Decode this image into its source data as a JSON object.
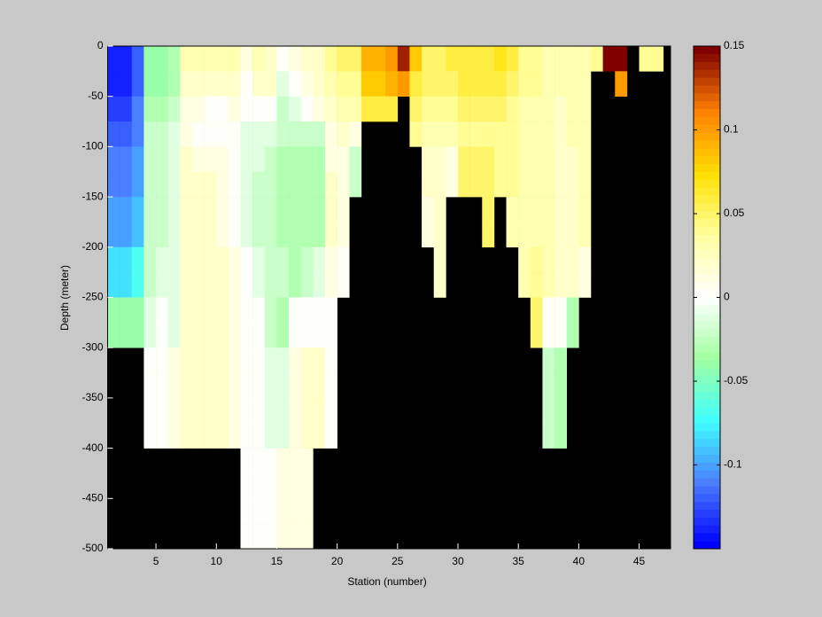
{
  "chart_data": {
    "type": "heatmap",
    "xlabel": "Station (number)",
    "ylabel": "Depth (meter)",
    "x": [
      1,
      2,
      3,
      4,
      5,
      6,
      7,
      8,
      9,
      10,
      11,
      12,
      13,
      14,
      15,
      16,
      17,
      18,
      19,
      20,
      21,
      22,
      23,
      24,
      25,
      26,
      27,
      28,
      29,
      30,
      31,
      32,
      33,
      34,
      35,
      36,
      37,
      38,
      39,
      40,
      41,
      42,
      43,
      44,
      45,
      46
    ],
    "y": [
      0,
      -25,
      -50,
      -75,
      -100,
      -125,
      -150,
      -175,
      -200,
      -225,
      -250,
      -275,
      -300,
      -325,
      -350,
      -375,
      -400,
      -425,
      -450,
      -475
    ],
    "values": [
      [
        -0.14,
        -0.14,
        -0.13,
        -0.12,
        -0.11,
        -0.11,
        -0.1,
        -0.1,
        -0.08,
        -0.08,
        -0.04,
        -0.04,
        null,
        null,
        null,
        null,
        null,
        null,
        null,
        null
      ],
      [
        -0.14,
        -0.14,
        -0.13,
        -0.12,
        -0.11,
        -0.11,
        -0.1,
        -0.1,
        -0.08,
        -0.08,
        -0.04,
        -0.04,
        null,
        null,
        null,
        null,
        null,
        null,
        null,
        null
      ],
      [
        -0.12,
        -0.12,
        -0.11,
        -0.11,
        -0.1,
        -0.1,
        -0.09,
        -0.09,
        -0.07,
        -0.07,
        -0.04,
        -0.04,
        null,
        null,
        null,
        null,
        null,
        null,
        null,
        null
      ],
      [
        -0.04,
        -0.04,
        -0.03,
        -0.02,
        -0.02,
        -0.02,
        -0.02,
        -0.02,
        -0.02,
        -0.02,
        -0.01,
        -0.01,
        0,
        0,
        0,
        0,
        null,
        null,
        null,
        null
      ],
      [
        -0.04,
        -0.04,
        -0.03,
        -0.02,
        -0.02,
        -0.02,
        -0.02,
        -0.02,
        -0.01,
        -0.01,
        0,
        0,
        0,
        0,
        0,
        0,
        null,
        null,
        null,
        null
      ],
      [
        -0.03,
        -0.03,
        -0.02,
        -0.01,
        -0.01,
        -0.01,
        -0.01,
        -0.01,
        -0.01,
        -0.01,
        -0.01,
        -0.01,
        0.01,
        0.01,
        0.01,
        0.01,
        null,
        null,
        null,
        null
      ],
      [
        0.03,
        0.02,
        0.01,
        0.01,
        0.02,
        0.02,
        0.02,
        0.02,
        0.02,
        0.02,
        0.02,
        0.02,
        0.02,
        0.02,
        0.02,
        0.02,
        null,
        null,
        null,
        null
      ],
      [
        0.03,
        0.02,
        0.01,
        0,
        0.01,
        0.02,
        0.02,
        0.02,
        0.02,
        0.02,
        0.02,
        0.02,
        0.02,
        0.02,
        0.02,
        0.02,
        null,
        null,
        null,
        null
      ],
      [
        0.03,
        0.02,
        0,
        0,
        0.01,
        0.02,
        0.02,
        0.02,
        0.02,
        0.02,
        0.02,
        0.02,
        0.02,
        0.02,
        0.02,
        0.02,
        null,
        null,
        null,
        null
      ],
      [
        0.03,
        0.02,
        0,
        0,
        0.01,
        0.01,
        0.01,
        0.01,
        0.02,
        0.02,
        0.02,
        0.02,
        0.02,
        0.02,
        0.02,
        0.02,
        null,
        null,
        null,
        null
      ],
      [
        0.03,
        0.02,
        0.01,
        0,
        0,
        0,
        0,
        0,
        0.01,
        0.01,
        0.01,
        0.01,
        0.01,
        0.01,
        0.01,
        0.01,
        null,
        null,
        null,
        null
      ],
      [
        0.01,
        0,
        0,
        -0.01,
        -0.01,
        -0.01,
        -0.01,
        -0.01,
        0,
        0,
        0,
        0,
        0,
        0,
        0,
        0,
        0,
        0,
        0,
        0
      ],
      [
        0.03,
        0.02,
        0,
        -0.01,
        -0.01,
        -0.02,
        -0.02,
        -0.02,
        -0.01,
        -0.01,
        0,
        0,
        0,
        0,
        0,
        0,
        0,
        0,
        0,
        0
      ],
      [
        0.02,
        0.02,
        0,
        -0.01,
        -0.02,
        -0.02,
        -0.02,
        -0.02,
        -0.02,
        -0.02,
        -0.02,
        -0.02,
        -0.01,
        -0.01,
        -0.01,
        -0.01,
        0,
        0,
        0,
        0
      ],
      [
        0,
        -0.01,
        -0.02,
        -0.02,
        -0.03,
        -0.03,
        -0.03,
        -0.03,
        -0.02,
        -0.02,
        -0.03,
        -0.03,
        -0.01,
        -0.01,
        -0.01,
        -0.01,
        0.01,
        0.01,
        0.01,
        0.01
      ],
      [
        0.01,
        0,
        -0.01,
        -0.02,
        -0.03,
        -0.03,
        -0.03,
        -0.03,
        -0.03,
        -0.03,
        0,
        0,
        0.01,
        0.01,
        0.01,
        0.01,
        0.01,
        0.01,
        0.01,
        0.01
      ],
      [
        0.02,
        0.01,
        0,
        -0.02,
        -0.03,
        -0.03,
        -0.03,
        -0.03,
        -0.02,
        -0.02,
        0,
        0,
        0.02,
        0.02,
        0.02,
        0.02,
        0.01,
        0.01,
        0.01,
        0.01
      ],
      [
        0.02,
        0.02,
        0.01,
        -0.02,
        -0.03,
        -0.03,
        -0.03,
        -0.03,
        -0.01,
        -0.01,
        0,
        0,
        0.02,
        0.02,
        0.02,
        0.02,
        null,
        null,
        null,
        null
      ],
      [
        0.04,
        0.03,
        0.02,
        0.01,
        0.01,
        0.02,
        0.02,
        0.02,
        0.01,
        0.01,
        0,
        0,
        0,
        0,
        0,
        0,
        null,
        null,
        null,
        null
      ],
      [
        0.05,
        0.04,
        0.03,
        0.02,
        0.01,
        0.01,
        0.01,
        0.01,
        0,
        0,
        null,
        null,
        null,
        null,
        null,
        null,
        null,
        null,
        null,
        null
      ],
      [
        0.05,
        0.04,
        0.03,
        0.01,
        -0.02,
        -0.02,
        null,
        null,
        null,
        null,
        null,
        null,
        null,
        null,
        null,
        null,
        null,
        null,
        null,
        null
      ],
      [
        0.09,
        0.08,
        0.06,
        null,
        null,
        null,
        null,
        null,
        null,
        null,
        null,
        null,
        null,
        null,
        null,
        null,
        null,
        null,
        null,
        null
      ],
      [
        0.09,
        0.08,
        0.06,
        null,
        null,
        null,
        null,
        null,
        null,
        null,
        null,
        null,
        null,
        null,
        null,
        null,
        null,
        null,
        null,
        null
      ],
      [
        0.1,
        0.09,
        0.06,
        null,
        null,
        null,
        null,
        null,
        null,
        null,
        null,
        null,
        null,
        null,
        null,
        null,
        null,
        null,
        null,
        null
      ],
      [
        0.14,
        0.1,
        null,
        null,
        null,
        null,
        null,
        null,
        null,
        null,
        null,
        null,
        null,
        null,
        null,
        null,
        null,
        null,
        null,
        null
      ],
      [
        0.08,
        0.06,
        0.05,
        0.04,
        null,
        null,
        null,
        null,
        null,
        null,
        null,
        null,
        null,
        null,
        null,
        null,
        null,
        null,
        null,
        null
      ],
      [
        0.05,
        0.05,
        0.04,
        0.03,
        0.02,
        0.02,
        0.01,
        0.01,
        null,
        null,
        null,
        null,
        null,
        null,
        null,
        null,
        null,
        null,
        null,
        null
      ],
      [
        0.05,
        0.05,
        0.04,
        0.03,
        0.02,
        0.02,
        0.02,
        0.02,
        0.02,
        0.02,
        null,
        null,
        null,
        null,
        null,
        null,
        null,
        null,
        null,
        null
      ],
      [
        0.06,
        0.05,
        0.04,
        0.03,
        0.01,
        0.01,
        null,
        null,
        null,
        null,
        null,
        null,
        null,
        null,
        null,
        null,
        null,
        null,
        null,
        null
      ],
      [
        0.06,
        0.06,
        0.05,
        0.04,
        0.05,
        0.05,
        null,
        null,
        null,
        null,
        null,
        null,
        null,
        null,
        null,
        null,
        null,
        null,
        null,
        null
      ],
      [
        0.06,
        0.06,
        0.05,
        0.04,
        0.05,
        0.05,
        null,
        null,
        null,
        null,
        null,
        null,
        null,
        null,
        null,
        null,
        null,
        null,
        null,
        null
      ],
      [
        0.06,
        0.06,
        0.05,
        0.04,
        0.05,
        0.05,
        0.05,
        0.05,
        null,
        null,
        null,
        null,
        null,
        null,
        null,
        null,
        null,
        null,
        null,
        null
      ],
      [
        0.07,
        0.06,
        0.05,
        0.04,
        0.04,
        0.04,
        null,
        null,
        null,
        null,
        null,
        null,
        null,
        null,
        null,
        null,
        null,
        null,
        null,
        null
      ],
      [
        0.06,
        0.05,
        0.04,
        0.04,
        0.04,
        0.04,
        0.03,
        0.03,
        null,
        null,
        null,
        null,
        null,
        null,
        null,
        null,
        null,
        null,
        null,
        null
      ],
      [
        0.04,
        0.04,
        0.03,
        0.03,
        0.03,
        0.03,
        0.03,
        0.03,
        0.03,
        0.03,
        null,
        null,
        null,
        null,
        null,
        null,
        null,
        null,
        null,
        null
      ],
      [
        0.04,
        0.04,
        0.03,
        0.03,
        0.03,
        0.03,
        0.03,
        0.03,
        0.04,
        0.04,
        0.05,
        0.05,
        null,
        null,
        null,
        null,
        null,
        null,
        null,
        null
      ],
      [
        0.03,
        0.03,
        0.03,
        0.03,
        0.03,
        0.03,
        0.03,
        0.03,
        0.03,
        0.03,
        0,
        0,
        -0.02,
        -0.02,
        -0.02,
        -0.02,
        null,
        null,
        null,
        null
      ],
      [
        0.03,
        0.03,
        0.02,
        0.02,
        0.02,
        0.02,
        0.02,
        0.02,
        0.02,
        0.02,
        0,
        0,
        -0.03,
        -0.03,
        -0.03,
        -0.03,
        null,
        null,
        null,
        null
      ],
      [
        0.03,
        0.03,
        0.03,
        0.03,
        0.02,
        0.02,
        0.02,
        0.02,
        0.02,
        0.02,
        -0.03,
        -0.03,
        null,
        null,
        null,
        null,
        null,
        null,
        null,
        null
      ],
      [
        0.03,
        0.03,
        0.03,
        0.03,
        0.03,
        0.03,
        0.03,
        0.03,
        0.01,
        0.01,
        null,
        null,
        null,
        null,
        null,
        null,
        null,
        null,
        null,
        null
      ],
      [
        0.04,
        null,
        null,
        null,
        null,
        null,
        null,
        null,
        null,
        null,
        null,
        null,
        null,
        null,
        null,
        null,
        null,
        null,
        null,
        null
      ],
      [
        0.15,
        null,
        null,
        null,
        null,
        null,
        null,
        null,
        null,
        null,
        null,
        null,
        null,
        null,
        null,
        null,
        null,
        null,
        null,
        null
      ],
      [
        0.15,
        0.1,
        null,
        null,
        null,
        null,
        null,
        null,
        null,
        null,
        null,
        null,
        null,
        null,
        null,
        null,
        null,
        null,
        null,
        null
      ],
      [
        null,
        null,
        null,
        null,
        null,
        null,
        null,
        null,
        null,
        null,
        null,
        null,
        null,
        null,
        null,
        null,
        null,
        null,
        null,
        null
      ],
      [
        0.04,
        null,
        null,
        null,
        null,
        null,
        null,
        null,
        null,
        null,
        null,
        null,
        null,
        null,
        null,
        null,
        null,
        null,
        null,
        null
      ],
      [
        0.04,
        null,
        null,
        null,
        null,
        null,
        null,
        null,
        null,
        null,
        null,
        null,
        null,
        null,
        null,
        null,
        null,
        null,
        null,
        null
      ]
    ],
    "xlim": [
      1,
      47.6
    ],
    "ylim": [
      -500,
      0
    ],
    "xticks": [
      5,
      10,
      15,
      20,
      25,
      30,
      35,
      40,
      45
    ],
    "yticks": [
      0,
      -50,
      -100,
      -150,
      -200,
      -250,
      -300,
      -350,
      -400,
      -450,
      -500
    ],
    "clim": [
      -0.15,
      0.15
    ],
    "cticks": [
      0.15,
      0.1,
      0.05,
      0,
      -0.05,
      -0.1
    ],
    "colormap": [
      "#0000ff",
      "#4a7dff",
      "#40ffff",
      "#a0ffa0",
      "#ffffff",
      "#ffffa0",
      "#ffe000",
      "#ff8000",
      "#800000"
    ],
    "nodata_color": "#000000",
    "background": "#c8c8c8"
  }
}
